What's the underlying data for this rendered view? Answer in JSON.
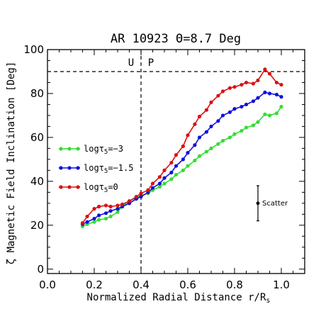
{
  "chart_data": {
    "type": "line",
    "title": "AR 10923 Θ=8.7 Deg",
    "xlabel": "Normalized Radial Distance r/R",
    "xlabel_sub": "s",
    "ylabel": "ζ Magnetic Field Inclination [Deg]",
    "xlim": [
      0.0,
      1.1
    ],
    "ylim": [
      -2,
      100
    ],
    "xticks": [
      0.0,
      0.2,
      0.4,
      0.6,
      0.8,
      1.0
    ],
    "xtick_labels": [
      "0.0",
      "0.2",
      "0.4",
      "0.6",
      "0.8",
      "1.0"
    ],
    "yticks": [
      0,
      20,
      40,
      60,
      80,
      100
    ],
    "ytick_labels": [
      "0",
      "20",
      "40",
      "60",
      "80",
      "100"
    ],
    "grid": false,
    "legend_position": "left",
    "annotations": {
      "vline_x": 0.4,
      "hline_y": 90,
      "umbra_label": "U",
      "penumbra_label": "P",
      "scatter_label": "Scatter",
      "scatter_x": 0.9,
      "scatter_y": 30,
      "scatter_err": 8
    },
    "series": [
      {
        "name": "logτ_5=-3",
        "legend_prefix": "logτ",
        "legend_sub": "5",
        "legend_suffix": "=−3",
        "color": "#33dd33",
        "x": [
          0.15,
          0.17,
          0.2,
          0.22,
          0.25,
          0.27,
          0.3,
          0.32,
          0.35,
          0.38,
          0.4,
          0.43,
          0.45,
          0.48,
          0.5,
          0.53,
          0.55,
          0.58,
          0.6,
          0.63,
          0.65,
          0.68,
          0.7,
          0.73,
          0.75,
          0.78,
          0.8,
          0.83,
          0.85,
          0.88,
          0.9,
          0.93,
          0.95,
          0.98,
          1.0
        ],
        "y": [
          19.5,
          20.5,
          21.5,
          22.5,
          23,
          24,
          26,
          28.5,
          31,
          32.5,
          33.5,
          34.5,
          36,
          37.5,
          39,
          41,
          43,
          45,
          47,
          49.5,
          51.5,
          53.5,
          55,
          57,
          58.5,
          60,
          61.5,
          63,
          64.5,
          65.5,
          67,
          70.5,
          70,
          71,
          74
        ]
      },
      {
        "name": "logτ_5=-1.5",
        "legend_prefix": "logτ",
        "legend_sub": "5",
        "legend_suffix": "=−1.5",
        "color": "#1010dd",
        "x": [
          0.15,
          0.17,
          0.2,
          0.22,
          0.25,
          0.27,
          0.3,
          0.32,
          0.35,
          0.38,
          0.4,
          0.43,
          0.45,
          0.48,
          0.5,
          0.53,
          0.55,
          0.58,
          0.6,
          0.63,
          0.65,
          0.68,
          0.7,
          0.73,
          0.75,
          0.78,
          0.8,
          0.83,
          0.85,
          0.88,
          0.9,
          0.93,
          0.95,
          0.98,
          1.0
        ],
        "y": [
          20.5,
          21.5,
          23,
          24.5,
          25.5,
          26.5,
          27.5,
          28.5,
          30,
          32,
          33,
          35,
          37,
          39,
          41.5,
          44,
          47,
          50,
          53,
          56.5,
          60,
          62.5,
          65,
          67.5,
          70,
          71.5,
          73,
          74,
          75,
          76.5,
          78,
          80.5,
          80,
          79.5,
          78.5
        ]
      },
      {
        "name": "logτ_5=0",
        "legend_prefix": "logτ",
        "legend_sub": "5",
        "legend_suffix": "=0",
        "color": "#dd1010",
        "x": [
          0.15,
          0.17,
          0.2,
          0.22,
          0.25,
          0.27,
          0.3,
          0.32,
          0.35,
          0.38,
          0.4,
          0.43,
          0.45,
          0.48,
          0.5,
          0.53,
          0.55,
          0.58,
          0.6,
          0.63,
          0.65,
          0.68,
          0.7,
          0.73,
          0.75,
          0.78,
          0.8,
          0.83,
          0.85,
          0.88,
          0.9,
          0.93,
          0.95,
          0.98,
          1.0
        ],
        "y": [
          21,
          24,
          27.5,
          28.5,
          29,
          28.5,
          29,
          29.5,
          31,
          33,
          34.5,
          36,
          39,
          42,
          45,
          48.5,
          52,
          56,
          61,
          66,
          69.5,
          72.5,
          76,
          79,
          81,
          82.5,
          83,
          84,
          85,
          84.5,
          86,
          91,
          89,
          85,
          84
        ]
      }
    ]
  }
}
